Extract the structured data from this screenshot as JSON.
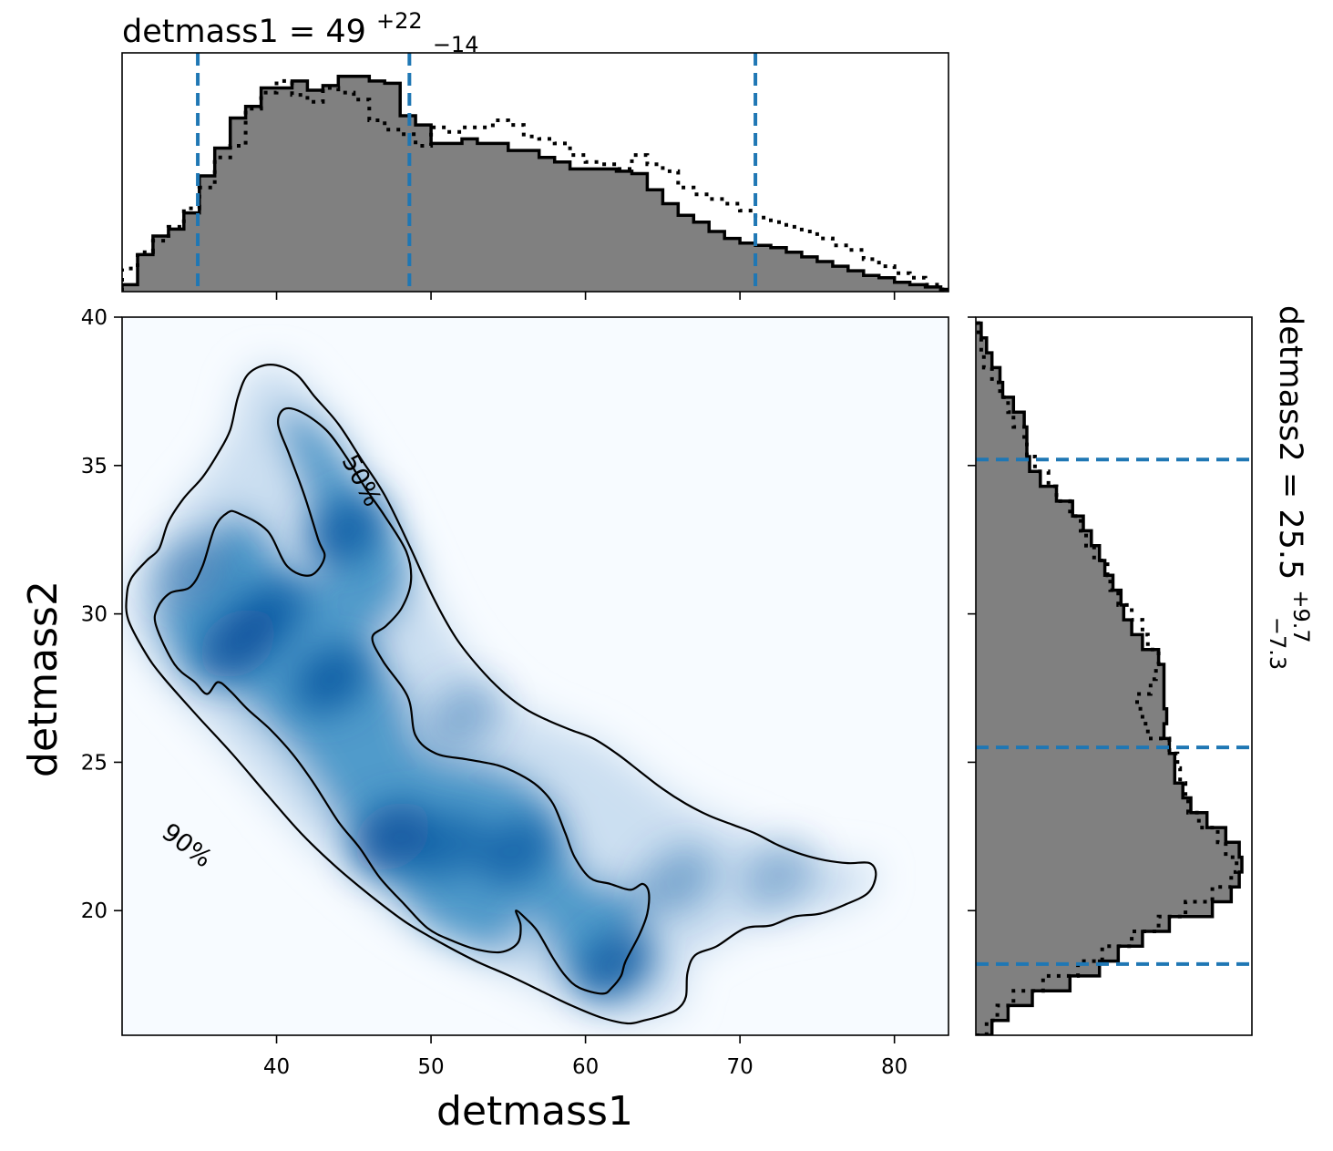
{
  "chart_data": [
    {
      "type": "heatmap",
      "panel": "joint",
      "xlabel": "detmass1",
      "ylabel": "detmass2",
      "xlim": [
        30,
        83.5
      ],
      "ylim": [
        15.8,
        40
      ],
      "xticks": [
        40,
        50,
        60,
        70,
        80
      ],
      "yticks": [
        20,
        25,
        30,
        35,
        40
      ],
      "colormap": "Blues",
      "density_peaks": [
        {
          "x": 37.5,
          "y": 29.0,
          "weight": 1.0
        },
        {
          "x": 39.5,
          "y": 30.0,
          "weight": 0.85
        },
        {
          "x": 43.5,
          "y": 27.8,
          "weight": 0.9
        },
        {
          "x": 44.5,
          "y": 32.8,
          "weight": 0.85
        },
        {
          "x": 47.5,
          "y": 22.5,
          "weight": 1.0
        },
        {
          "x": 51.0,
          "y": 22.2,
          "weight": 0.75
        },
        {
          "x": 55.5,
          "y": 22.0,
          "weight": 0.8
        },
        {
          "x": 62.0,
          "y": 18.2,
          "weight": 0.9
        },
        {
          "x": 66.0,
          "y": 21.0,
          "weight": 0.45
        },
        {
          "x": 72.5,
          "y": 21.2,
          "weight": 0.35
        },
        {
          "x": 34.5,
          "y": 31.5,
          "weight": 0.55
        },
        {
          "x": 52.0,
          "y": 26.5,
          "weight": 0.4
        }
      ],
      "contours": [
        {
          "label": "90%",
          "label_pos": [
            34.2,
            22.2
          ],
          "label_angle": 37,
          "points": [
            [
              39.6,
              38.4
            ],
            [
              41.2,
              38.1
            ],
            [
              42.5,
              37.3
            ],
            [
              44,
              36.4
            ],
            [
              45.5,
              35.2
            ],
            [
              47,
              34
            ],
            [
              48.6,
              32.3
            ],
            [
              50.1,
              30.6
            ],
            [
              51.6,
              29.2
            ],
            [
              53.1,
              28.2
            ],
            [
              54.6,
              27.4
            ],
            [
              56.1,
              26.8
            ],
            [
              57.6,
              26.4
            ],
            [
              59,
              26.1
            ],
            [
              60.5,
              25.8
            ],
            [
              62,
              25.3
            ],
            [
              63.5,
              24.7
            ],
            [
              65,
              24.1
            ],
            [
              66.5,
              23.6
            ],
            [
              68,
              23.2
            ],
            [
              69.5,
              22.9
            ],
            [
              71,
              22.6
            ],
            [
              72.5,
              22.2
            ],
            [
              74,
              21.9
            ],
            [
              75.5,
              21.7
            ],
            [
              77,
              21.6
            ],
            [
              78.4,
              21.6
            ],
            [
              78.8,
              21.2
            ],
            [
              78.3,
              20.6
            ],
            [
              76.8,
              20.2
            ],
            [
              75.2,
              19.9
            ],
            [
              73.5,
              19.8
            ],
            [
              72,
              19.5
            ],
            [
              70.3,
              19.4
            ],
            [
              68.5,
              18.8
            ],
            [
              67.1,
              18.5
            ],
            [
              66.6,
              17.9
            ],
            [
              66.5,
              17.1
            ],
            [
              66,
              16.7
            ],
            [
              65.2,
              16.5
            ],
            [
              63.8,
              16.3
            ],
            [
              62.7,
              16.2
            ],
            [
              61,
              16.4
            ],
            [
              59.1,
              16.8
            ],
            [
              57.1,
              17.3
            ],
            [
              55.1,
              17.8
            ],
            [
              52.9,
              18.3
            ],
            [
              50.7,
              18.9
            ],
            [
              48.4,
              19.6
            ],
            [
              46.1,
              20.5
            ],
            [
              43.8,
              21.5
            ],
            [
              41.6,
              22.6
            ],
            [
              39.4,
              23.9
            ],
            [
              37.1,
              25.3
            ],
            [
              34.8,
              26.6
            ],
            [
              32.6,
              27.9
            ],
            [
              31.5,
              28.7
            ],
            [
              30.4,
              29.8
            ],
            [
              30.3,
              30.6
            ],
            [
              30.6,
              31.2
            ],
            [
              31.6,
              31.8
            ],
            [
              32.4,
              32.2
            ],
            [
              33,
              33.1
            ],
            [
              34,
              33.9
            ],
            [
              35.2,
              34.6
            ],
            [
              36.2,
              35.4
            ],
            [
              37,
              36.2
            ],
            [
              37.5,
              37.3
            ],
            [
              38.2,
              38.1
            ]
          ]
        },
        {
          "label": "50%",
          "label_pos": [
            45.5,
            34.5
          ],
          "label_angle": 62,
          "points": [
            [
              40.5,
              36.9
            ],
            [
              41.6,
              36.8
            ],
            [
              43.2,
              36.2
            ],
            [
              44.5,
              35.3
            ],
            [
              45.8,
              34.2
            ],
            [
              47,
              33.3
            ],
            [
              48.4,
              32.1
            ],
            [
              48.7,
              31.1
            ],
            [
              48.1,
              30.2
            ],
            [
              47.1,
              29.6
            ],
            [
              46.2,
              29.2
            ],
            [
              46.9,
              28.4
            ],
            [
              48.5,
              27.2
            ],
            [
              49,
              25.9
            ],
            [
              50.3,
              25.3
            ],
            [
              52.3,
              25.1
            ],
            [
              54.3,
              24.9
            ],
            [
              55.7,
              24.6
            ],
            [
              56.9,
              24.2
            ],
            [
              57.9,
              23.6
            ],
            [
              58.7,
              22.6
            ],
            [
              59.3,
              21.8
            ],
            [
              60.3,
              21.1
            ],
            [
              61.6,
              20.9
            ],
            [
              62.9,
              20.7
            ],
            [
              63.7,
              20.9
            ],
            [
              64.1,
              20.6
            ],
            [
              64,
              19.9
            ],
            [
              63.5,
              19.2
            ],
            [
              62.6,
              18.3
            ],
            [
              62.3,
              17.8
            ],
            [
              61.7,
              17.4
            ],
            [
              61.1,
              17.2
            ],
            [
              59.6,
              17.4
            ],
            [
              58.7,
              17.8
            ],
            [
              57.9,
              18.4
            ],
            [
              56.9,
              19.3
            ],
            [
              56.2,
              19.7
            ],
            [
              55.5,
              20
            ],
            [
              55.8,
              19.5
            ],
            [
              55.6,
              18.9
            ],
            [
              54.5,
              18.6
            ],
            [
              52.9,
              18.7
            ],
            [
              51.3,
              19
            ],
            [
              49.8,
              19.4
            ],
            [
              48.3,
              20.2
            ],
            [
              46.7,
              21.1
            ],
            [
              45.4,
              22.1
            ],
            [
              44,
              23
            ],
            [
              42.4,
              24.3
            ],
            [
              41,
              25.3
            ],
            [
              39.6,
              26.1
            ],
            [
              38.1,
              26.8
            ],
            [
              37,
              27.4
            ],
            [
              36.2,
              27.7
            ],
            [
              35.5,
              27.3
            ],
            [
              34.7,
              27.7
            ],
            [
              33.4,
              28.3
            ],
            [
              32.2,
              29.6
            ],
            [
              32.3,
              30.2
            ],
            [
              33.1,
              30.7
            ],
            [
              34.4,
              30.9
            ],
            [
              35.2,
              31.6
            ],
            [
              36,
              32.9
            ],
            [
              36.8,
              33.4
            ],
            [
              37.5,
              33.4
            ],
            [
              39.4,
              32.8
            ],
            [
              40.7,
              31.6
            ],
            [
              42.2,
              31.3
            ],
            [
              43.1,
              31.9
            ],
            [
              42.7,
              32.5
            ],
            [
              41.8,
              34
            ],
            [
              40.8,
              35.4
            ],
            [
              40.1,
              36.4
            ]
          ]
        }
      ]
    },
    {
      "type": "bar",
      "panel": "top-marginal",
      "title": "detmass1 = 49",
      "title_sup": "+22",
      "title_sub": "−14",
      "xlim": [
        30,
        83.5
      ],
      "bin_edges": [
        30,
        31,
        32,
        33,
        34,
        35,
        36,
        37,
        38,
        39,
        40,
        41,
        42,
        43,
        44,
        45,
        46,
        47,
        48,
        49,
        50,
        51,
        52,
        53,
        54,
        55,
        56,
        57,
        58,
        59,
        60,
        61,
        62,
        63,
        64,
        65,
        66,
        67,
        68,
        69,
        70,
        71,
        72,
        73,
        74,
        75,
        76,
        77,
        78,
        79,
        80,
        81,
        82,
        83,
        84
      ],
      "series": [
        {
          "name": "",
          "style": "filled gray with solid black step outline",
          "values": [
            0.03,
            0.16,
            0.24,
            0.27,
            0.34,
            0.5,
            0.62,
            0.75,
            0.8,
            0.88,
            0.88,
            0.91,
            0.87,
            0.89,
            0.93,
            0.93,
            0.91,
            0.9,
            0.76,
            0.72,
            0.64,
            0.64,
            0.66,
            0.64,
            0.64,
            0.61,
            0.61,
            0.58,
            0.56,
            0.53,
            0.53,
            0.53,
            0.52,
            0.51,
            0.44,
            0.38,
            0.33,
            0.3,
            0.26,
            0.23,
            0.21,
            0.2,
            0.19,
            0.17,
            0.15,
            0.13,
            0.11,
            0.09,
            0.07,
            0.06,
            0.04,
            0.03,
            0.02,
            0.01
          ]
        },
        {
          "name": "",
          "style": "black dotted step",
          "values": [
            0.1,
            0.17,
            0.22,
            0.28,
            0.36,
            0.45,
            0.58,
            0.63,
            0.79,
            0.86,
            0.91,
            0.85,
            0.82,
            0.88,
            0.86,
            0.83,
            0.74,
            0.7,
            0.68,
            0.63,
            0.71,
            0.69,
            0.71,
            0.71,
            0.74,
            0.72,
            0.67,
            0.66,
            0.64,
            0.59,
            0.56,
            0.55,
            0.53,
            0.59,
            0.55,
            0.52,
            0.45,
            0.42,
            0.4,
            0.38,
            0.35,
            0.32,
            0.3,
            0.28,
            0.26,
            0.23,
            0.2,
            0.18,
            0.14,
            0.11,
            0.08,
            0.06,
            0.03,
            0.01
          ]
        }
      ],
      "quantile_lines": [
        34.9,
        48.6,
        71.0
      ],
      "quantile_color": "#1f77b4"
    },
    {
      "type": "bar",
      "panel": "right-marginal",
      "orientation": "horizontal",
      "title": "detmass2 = 25.5",
      "title_sup": "+9.7",
      "title_sub": "−7.3",
      "ylim": [
        15.8,
        40
      ],
      "bin_edges": [
        15.8,
        16.3,
        16.8,
        17.3,
        17.8,
        18.3,
        18.8,
        19.3,
        19.8,
        20.3,
        20.8,
        21.3,
        21.8,
        22.3,
        22.8,
        23.3,
        23.8,
        24.3,
        24.8,
        25.3,
        25.8,
        26.3,
        26.8,
        27.3,
        27.8,
        28.3,
        28.8,
        29.3,
        29.8,
        30.3,
        30.8,
        31.3,
        31.8,
        32.3,
        32.8,
        33.3,
        33.8,
        34.3,
        34.8,
        35.3,
        35.8,
        36.3,
        36.8,
        37.3,
        37.8,
        38.3,
        38.8,
        39.3,
        39.8
      ],
      "series": [
        {
          "name": "",
          "style": "filled gray with solid black step outline",
          "values": [
            0.06,
            0.12,
            0.21,
            0.35,
            0.46,
            0.53,
            0.62,
            0.72,
            0.88,
            0.95,
            0.98,
            0.99,
            0.98,
            0.93,
            0.86,
            0.8,
            0.77,
            0.74,
            0.74,
            0.72,
            0.7,
            0.71,
            0.7,
            0.7,
            0.7,
            0.68,
            0.62,
            0.58,
            0.55,
            0.54,
            0.51,
            0.48,
            0.46,
            0.43,
            0.4,
            0.36,
            0.3,
            0.24,
            0.2,
            0.19,
            0.19,
            0.18,
            0.14,
            0.1,
            0.09,
            0.06,
            0.04,
            0.02
          ]
        },
        {
          "name": "",
          "style": "black dotted step",
          "values": [
            0.04,
            0.08,
            0.14,
            0.25,
            0.38,
            0.47,
            0.58,
            0.68,
            0.78,
            0.88,
            0.95,
            0.97,
            0.93,
            0.9,
            0.83,
            0.79,
            0.78,
            0.76,
            0.75,
            0.72,
            0.64,
            0.62,
            0.6,
            0.65,
            0.67,
            0.68,
            0.64,
            0.62,
            0.58,
            0.53,
            0.5,
            0.49,
            0.44,
            0.41,
            0.39,
            0.35,
            0.3,
            0.27,
            0.22,
            0.19,
            0.18,
            0.14,
            0.12,
            0.09,
            0.06,
            0.03,
            0.02,
            0.01
          ]
        }
      ],
      "quantile_lines": [
        18.2,
        25.5,
        35.2
      ],
      "quantile_color": "#1f77b4"
    }
  ]
}
